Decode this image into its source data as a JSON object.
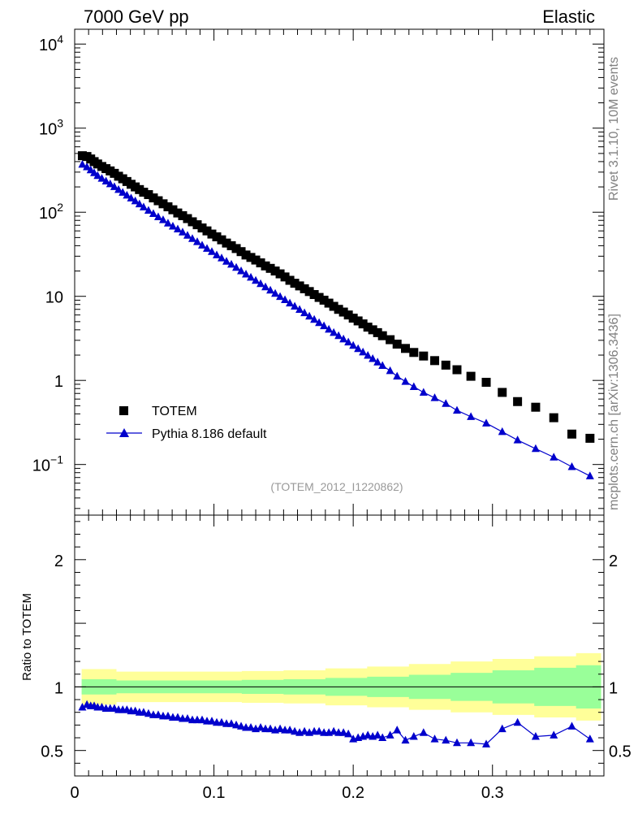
{
  "header": {
    "left": "7000 GeV pp",
    "right": "Elastic"
  },
  "side_labels": {
    "top": "Rivet 3.1.10,  10M events",
    "bottom": "mcplots.cern.ch [arXiv:1306.3436]"
  },
  "colors": {
    "data": "#000000",
    "mc": "#0000cc",
    "band_outer": "#ffff99",
    "band_inner": "#99ff99"
  },
  "chart_data": [
    {
      "type": "scatter",
      "yscale": "log",
      "title": "Elastic",
      "xlabel": "",
      "ylabel": "",
      "xlim": [
        0,
        0.38
      ],
      "ylim": [
        0.025,
        15000
      ],
      "watermark": "(TOTEM_2012_I1220862)",
      "ytick_labels": [
        {
          "base": "10",
          "exp": "4",
          "value": 10000
        },
        {
          "base": "10",
          "exp": "3",
          "value": 1000
        },
        {
          "base": "10",
          "exp": "2",
          "value": 100
        },
        {
          "base": "10",
          "exp": "",
          "value": 10
        },
        {
          "base": "1",
          "exp": "",
          "value": 1
        },
        {
          "base": "10",
          "exp": "−1",
          "value": 0.1
        }
      ],
      "legend": {
        "placement": "bottom-left",
        "entries": [
          "TOTEM",
          "Pythia 8.186 default"
        ]
      },
      "series": [
        {
          "name": "TOTEM",
          "marker": "square",
          "points": [
            [
              0.0055,
              470
            ],
            [
              0.0088,
              460
            ],
            [
              0.0115,
              430
            ],
            [
              0.014,
              400
            ],
            [
              0.0165,
              375
            ],
            [
              0.0195,
              350
            ],
            [
              0.0225,
              330
            ],
            [
              0.0255,
              310
            ],
            [
              0.0285,
              290
            ],
            [
              0.0315,
              268
            ],
            [
              0.0345,
              250
            ],
            [
              0.0375,
              232
            ],
            [
              0.0405,
              215
            ],
            [
              0.0435,
              200
            ],
            [
              0.0465,
              186
            ],
            [
              0.0495,
              173
            ],
            [
              0.053,
              162
            ],
            [
              0.0565,
              148
            ],
            [
              0.06,
              137
            ],
            [
              0.0635,
              126
            ],
            [
              0.067,
              116
            ],
            [
              0.0705,
              107
            ],
            [
              0.074,
              98
            ],
            [
              0.0775,
              91
            ],
            [
              0.081,
              84
            ],
            [
              0.0845,
              77
            ],
            [
              0.088,
              71
            ],
            [
              0.0915,
              65
            ],
            [
              0.095,
              60
            ],
            [
              0.0985,
              55
            ],
            [
              0.102,
              51
            ],
            [
              0.1055,
              47
            ],
            [
              0.109,
              43
            ],
            [
              0.1125,
              40
            ],
            [
              0.116,
              37
            ],
            [
              0.1195,
              34
            ],
            [
              0.123,
              31
            ],
            [
              0.1265,
              29
            ],
            [
              0.13,
              27
            ],
            [
              0.1335,
              25
            ],
            [
              0.137,
              23
            ],
            [
              0.1405,
              21.5
            ],
            [
              0.144,
              20
            ],
            [
              0.1475,
              18.5
            ],
            [
              0.151,
              17
            ],
            [
              0.1545,
              15.5
            ],
            [
              0.158,
              14.3
            ],
            [
              0.1615,
              13.3
            ],
            [
              0.165,
              12.3
            ],
            [
              0.1685,
              11.4
            ],
            [
              0.172,
              10.5
            ],
            [
              0.1755,
              9.7
            ],
            [
              0.179,
              9.0
            ],
            [
              0.1825,
              8.3
            ],
            [
              0.186,
              7.6
            ],
            [
              0.1895,
              7.0
            ],
            [
              0.193,
              6.5
            ],
            [
              0.1965,
              6.0
            ],
            [
              0.2,
              5.5
            ],
            [
              0.2035,
              5.1
            ],
            [
              0.207,
              4.7
            ],
            [
              0.2105,
              4.3
            ],
            [
              0.214,
              4.0
            ],
            [
              0.2175,
              3.7
            ],
            [
              0.221,
              3.4
            ],
            [
              0.2265,
              3.05
            ],
            [
              0.2315,
              2.7
            ],
            [
              0.2375,
              2.4
            ],
            [
              0.2435,
              2.15
            ],
            [
              0.2505,
              1.95
            ],
            [
              0.2585,
              1.72
            ],
            [
              0.2665,
              1.52
            ],
            [
              0.2745,
              1.34
            ],
            [
              0.2845,
              1.12
            ],
            [
              0.2955,
              0.95
            ],
            [
              0.307,
              0.72
            ],
            [
              0.318,
              0.56
            ],
            [
              0.331,
              0.48
            ],
            [
              0.344,
              0.36
            ],
            [
              0.357,
              0.23
            ],
            [
              0.37,
              0.205
            ]
          ]
        },
        {
          "name": "Pythia 8.186 default",
          "marker": "triangle",
          "points": [
            [
              0.0055,
              370
            ],
            [
              0.0088,
              345
            ],
            [
              0.0115,
              318
            ],
            [
              0.014,
              294
            ],
            [
              0.0165,
              272
            ],
            [
              0.0195,
              252
            ],
            [
              0.0225,
              234
            ],
            [
              0.0255,
              217
            ],
            [
              0.0285,
              201
            ],
            [
              0.0315,
              186
            ],
            [
              0.0345,
              172
            ],
            [
              0.0375,
              159
            ],
            [
              0.0405,
              147
            ],
            [
              0.0435,
              136
            ],
            [
              0.0465,
              125
            ],
            [
              0.0495,
              115
            ],
            [
              0.053,
              105
            ],
            [
              0.0565,
              96
            ],
            [
              0.06,
              88
            ],
            [
              0.0635,
              81
            ],
            [
              0.067,
              74
            ],
            [
              0.0705,
              68
            ],
            [
              0.074,
              63
            ],
            [
              0.0775,
              58
            ],
            [
              0.081,
              53
            ],
            [
              0.0845,
              48.5
            ],
            [
              0.088,
              44.5
            ],
            [
              0.0915,
              40.5
            ],
            [
              0.095,
              37
            ],
            [
              0.0985,
              34
            ],
            [
              0.102,
              31
            ],
            [
              0.1055,
              28.5
            ],
            [
              0.109,
              26
            ],
            [
              0.1125,
              24
            ],
            [
              0.116,
              22
            ],
            [
              0.1195,
              20
            ],
            [
              0.123,
              18.3
            ],
            [
              0.1265,
              16.8
            ],
            [
              0.13,
              15.4
            ],
            [
              0.1335,
              14.1
            ],
            [
              0.137,
              12.9
            ],
            [
              0.1405,
              11.8
            ],
            [
              0.144,
              10.8
            ],
            [
              0.1475,
              9.9
            ],
            [
              0.151,
              9.1
            ],
            [
              0.1545,
              8.3
            ],
            [
              0.158,
              7.6
            ],
            [
              0.1615,
              6.95
            ],
            [
              0.165,
              6.35
            ],
            [
              0.1685,
              5.8
            ],
            [
              0.172,
              5.3
            ],
            [
              0.1755,
              4.85
            ],
            [
              0.179,
              4.45
            ],
            [
              0.1825,
              4.05
            ],
            [
              0.186,
              3.7
            ],
            [
              0.1895,
              3.4
            ],
            [
              0.193,
              3.1
            ],
            [
              0.1965,
              2.85
            ],
            [
              0.2,
              2.6
            ],
            [
              0.2035,
              2.38
            ],
            [
              0.207,
              2.17
            ],
            [
              0.2105,
              1.98
            ],
            [
              0.214,
              1.81
            ],
            [
              0.2175,
              1.65
            ],
            [
              0.221,
              1.5
            ],
            [
              0.2265,
              1.3
            ],
            [
              0.2315,
              1.12
            ],
            [
              0.2375,
              0.97
            ],
            [
              0.2435,
              0.84
            ],
            [
              0.2505,
              0.72
            ],
            [
              0.2585,
              0.62
            ],
            [
              0.2665,
              0.53
            ],
            [
              0.2745,
              0.44
            ],
            [
              0.2845,
              0.37
            ],
            [
              0.2955,
              0.31
            ],
            [
              0.307,
              0.245
            ],
            [
              0.318,
              0.195
            ],
            [
              0.331,
              0.154
            ],
            [
              0.344,
              0.122
            ],
            [
              0.357,
              0.094
            ],
            [
              0.37,
              0.073
            ]
          ]
        }
      ]
    },
    {
      "type": "scatter",
      "yscale": "linear",
      "title": "",
      "xlabel": "",
      "ylabel": "Ratio to TOTEM",
      "xlim": [
        0,
        0.38
      ],
      "ylim": [
        0.3,
        2.35
      ],
      "yticks": [
        0.5,
        1,
        2
      ],
      "ytick_labels": [
        "0.5",
        "1",
        "2"
      ],
      "xticks": [
        0,
        0.1,
        0.2,
        0.3
      ],
      "xtick_labels": [
        "0",
        "0.1",
        "0.2",
        "0.3"
      ],
      "reference_line": 1,
      "uncertainty_band": {
        "x": [
          0.005,
          0.03,
          0.06,
          0.09,
          0.12,
          0.15,
          0.18,
          0.21,
          0.24,
          0.27,
          0.3,
          0.33,
          0.36,
          0.378
        ],
        "outer": [
          0.14,
          0.12,
          0.12,
          0.12,
          0.125,
          0.13,
          0.145,
          0.16,
          0.18,
          0.2,
          0.22,
          0.24,
          0.265,
          0.275
        ],
        "inner": [
          0.06,
          0.05,
          0.05,
          0.05,
          0.055,
          0.06,
          0.07,
          0.08,
          0.095,
          0.11,
          0.13,
          0.15,
          0.17,
          0.175
        ]
      },
      "series": [
        {
          "name": "Pythia 8.186 default",
          "marker": "triangle",
          "points": [
            [
              0.0055,
              0.84
            ],
            [
              0.0088,
              0.86
            ],
            [
              0.0115,
              0.85
            ],
            [
              0.014,
              0.85
            ],
            [
              0.0165,
              0.84
            ],
            [
              0.0195,
              0.84
            ],
            [
              0.0225,
              0.83
            ],
            [
              0.0255,
              0.83
            ],
            [
              0.0285,
              0.83
            ],
            [
              0.0315,
              0.82
            ],
            [
              0.0345,
              0.82
            ],
            [
              0.0375,
              0.82
            ],
            [
              0.0405,
              0.81
            ],
            [
              0.0435,
              0.81
            ],
            [
              0.0465,
              0.8
            ],
            [
              0.0495,
              0.8
            ],
            [
              0.053,
              0.79
            ],
            [
              0.0565,
              0.78
            ],
            [
              0.06,
              0.78
            ],
            [
              0.0635,
              0.77
            ],
            [
              0.067,
              0.77
            ],
            [
              0.0705,
              0.76
            ],
            [
              0.074,
              0.76
            ],
            [
              0.0775,
              0.75
            ],
            [
              0.081,
              0.75
            ],
            [
              0.0845,
              0.74
            ],
            [
              0.088,
              0.74
            ],
            [
              0.0915,
              0.74
            ],
            [
              0.095,
              0.73
            ],
            [
              0.0985,
              0.73
            ],
            [
              0.102,
              0.72
            ],
            [
              0.1055,
              0.72
            ],
            [
              0.109,
              0.71
            ],
            [
              0.1125,
              0.71
            ],
            [
              0.116,
              0.7
            ],
            [
              0.1195,
              0.69
            ],
            [
              0.123,
              0.68
            ],
            [
              0.1265,
              0.68
            ],
            [
              0.13,
              0.67
            ],
            [
              0.1335,
              0.68
            ],
            [
              0.137,
              0.67
            ],
            [
              0.1405,
              0.67
            ],
            [
              0.144,
              0.66
            ],
            [
              0.1475,
              0.67
            ],
            [
              0.151,
              0.66
            ],
            [
              0.1545,
              0.66
            ],
            [
              0.158,
              0.65
            ],
            [
              0.1615,
              0.64
            ],
            [
              0.165,
              0.65
            ],
            [
              0.1685,
              0.64
            ],
            [
              0.172,
              0.65
            ],
            [
              0.1755,
              0.65
            ],
            [
              0.179,
              0.64
            ],
            [
              0.1825,
              0.64
            ],
            [
              0.186,
              0.65
            ],
            [
              0.1895,
              0.64
            ],
            [
              0.193,
              0.64
            ],
            [
              0.1965,
              0.63
            ],
            [
              0.2,
              0.59
            ],
            [
              0.2035,
              0.6
            ],
            [
              0.207,
              0.61
            ],
            [
              0.2105,
              0.62
            ],
            [
              0.214,
              0.61
            ],
            [
              0.2175,
              0.62
            ],
            [
              0.221,
              0.6
            ],
            [
              0.2265,
              0.62
            ],
            [
              0.2315,
              0.66
            ],
            [
              0.2375,
              0.58
            ],
            [
              0.2435,
              0.61
            ],
            [
              0.2505,
              0.64
            ],
            [
              0.2585,
              0.59
            ],
            [
              0.2665,
              0.58
            ],
            [
              0.2745,
              0.56
            ],
            [
              0.2845,
              0.56
            ],
            [
              0.2955,
              0.55
            ],
            [
              0.307,
              0.67
            ],
            [
              0.318,
              0.72
            ],
            [
              0.331,
              0.61
            ],
            [
              0.344,
              0.62
            ],
            [
              0.357,
              0.69
            ],
            [
              0.37,
              0.59
            ]
          ]
        }
      ]
    }
  ]
}
